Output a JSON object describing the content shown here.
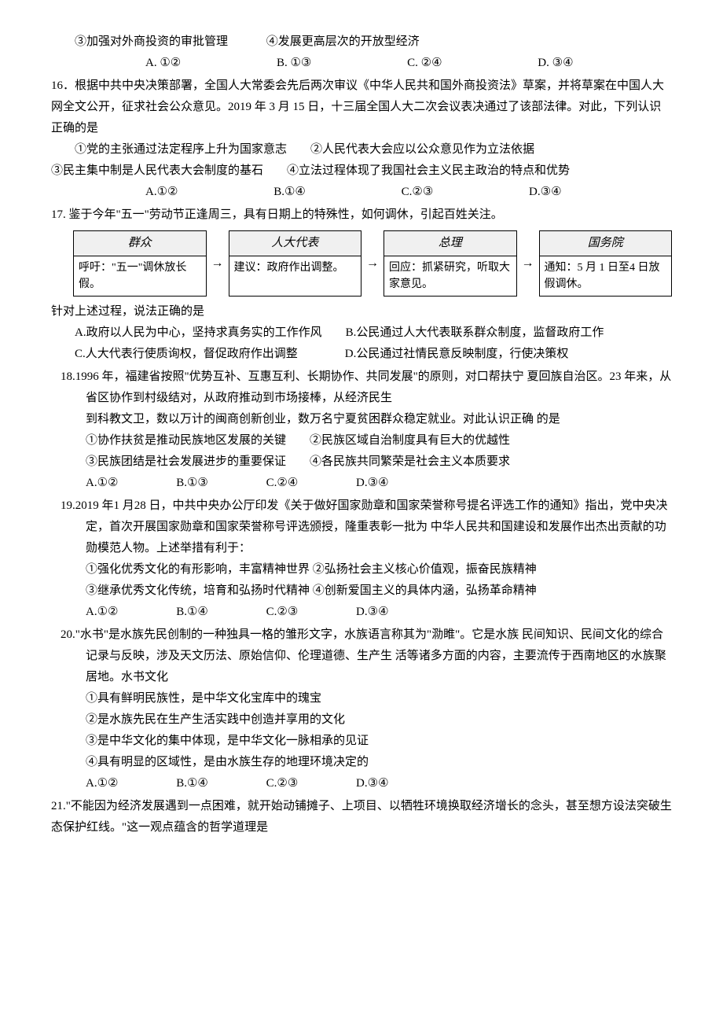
{
  "q15": {
    "opt3": "③加强对外商投资的审批管理",
    "opt4": "④发展更高层次的开放型经济",
    "a": "A. ①②",
    "b": "B. ①③",
    "c": "C. ②④",
    "d": "D. ③④"
  },
  "q16": {
    "stem1": "16．根据中共中央决策部署，全国人大常委会先后两次审议《中华人民共和国外商投资法》草案，并将草案在中国人大网全文公开，征求社会公众意见。2019 年 3 月 15 日，十三届全国人大二次会议表决通过了该部法律。对此，下列认识正确的是",
    "opt1": "①党的主张通过法定程序上升为国家意志　　②人民代表大会应以公众意见作为立法依据",
    "opt2": "③民主集中制是人民代表大会制度的基石　　④立法过程体现了我国社会主义民主政治的特点和优势",
    "a": "A.①②",
    "b": "B.①④",
    "c": "C.②③",
    "d": "D.③④"
  },
  "q17": {
    "stem": "17. 鉴于今年\"五一\"劳动节正逢周三，具有日期上的特殊性，如何调休，引起百姓关注。",
    "flow": {
      "b1h": "群众",
      "b1t": "呼吁：\"五一\"调休放长假。",
      "b2h": "人大代表",
      "b2t": "建议：政府作出调整。",
      "b3h": "总理",
      "b3t": "回应：抓紧研究，听取大家意见。",
      "b4h": "国务院",
      "b4t": "通知：5 月 1 日至4 日放假调休。",
      "arrow": "→"
    },
    "lead": "针对上述过程，说法正确的是",
    "a": "A.政府以人民为中心，坚持求真务实的工作作风　　B.公民通过人大代表联系群众制度，监督政府工作",
    "c": "C.人大代表行使质询权，督促政府作出调整　　　　D.公民通过社情民意反映制度，行使决策权"
  },
  "q18": {
    "l1": "18.1996 年，福建省按照\"优势互补、互惠互利、长期协作、共同发展\"的原则，对口帮扶宁 夏回族自治区。23 年来，从省区协作到村级结对，从政府推动到市场接棒，从经济民生",
    "l2": "到科教文卫，数以万计的闽商创新创业，数万名宁夏贫困群众稳定就业。对此认识正确 的是",
    "o1": "①协作扶贫是推动民族地区发展的关键　　②民族区域自治制度具有巨大的优越性",
    "o2": "③民族团结是社会发展进步的重要保证　　④各民族共同繁荣是社会主义本质要求",
    "a": "A.①②",
    "b": "B.①③",
    "c": "C.②④",
    "d": "D.③④"
  },
  "q19": {
    "l1": "19.2019 年1 月28 日，中共中央办公厅印发《关于做好国家勋章和国家荣誉称号提名评选工作的通知》指出，党中央决定，首次开展国家勋章和国家荣誉称号评选颁授，隆重表彰一批为 中华人民共和国建设和发展作出杰出贡献的功勋模范人物。上述举措有利于：",
    "o1": "①强化优秀文化的有形影响，丰富精神世界 ②弘扬社会主义核心价值观，振奋民族精神",
    "o2": "③继承优秀文化传统，培育和弘扬时代精神 ④创新爱国主义的具体内涵，弘扬革命精神",
    "a": "A.①②",
    "b": "B.①④",
    "c": "C.②③",
    "d": "D.③④"
  },
  "q20": {
    "l1": "20.\"水书\"是水族先民创制的一种独具一格的雏形文字，水族语言称其为\"泐睢\"。它是水族 民间知识、民间文化的综合记录与反映，涉及天文历法、原始信仰、伦理道德、生产生 活等诸多方面的内容，主要流传于西南地区的水族聚居地。水书文化",
    "o1": "①具有鲜明民族性，是中华文化宝库中的瑰宝",
    "o2": "②是水族先民在生产生活实践中创造并享用的文化",
    "o3": "③是中华文化的集中体现，是中华文化一脉相承的见证",
    "o4": "④具有明显的区域性，是由水族生存的地理环境决定的",
    "a": "A.①②",
    "b": "B.①④",
    "c": "C.②③",
    "d": "D.③④"
  },
  "q21": {
    "l1": "21.\"不能因为经济发展遇到一点困难，就开始动铺摊子、上项目、以牺牲环境换取经济增长的念头，甚至想方设法突破生态保护红线。\"这一观点蕴含的哲学道理是"
  }
}
